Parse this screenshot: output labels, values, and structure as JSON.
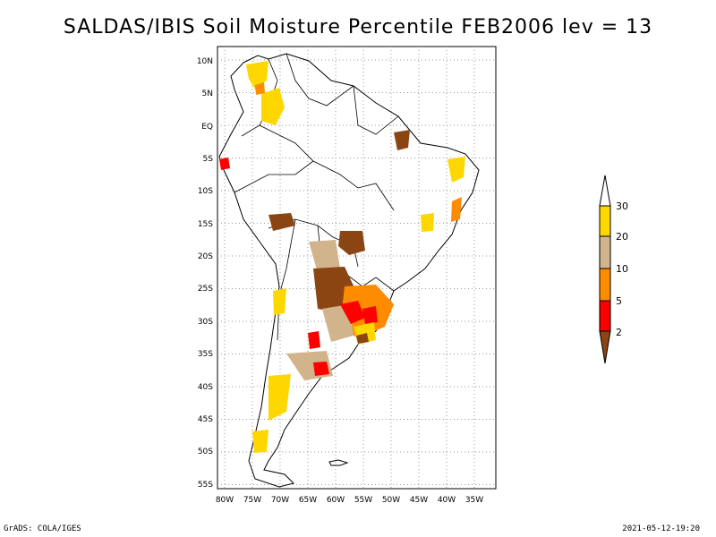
{
  "title": "SALDAS/IBIS Soil Moisture Percentile FEB2006 lev = 13",
  "map": {
    "lat_labels": [
      "10N",
      "5N",
      "EQ",
      "5S",
      "10S",
      "15S",
      "20S",
      "25S",
      "30S",
      "35S",
      "40S",
      "45S",
      "50S",
      "55S"
    ],
    "lon_labels": [
      "80W",
      "75W",
      "70W",
      "65W",
      "60W",
      "55W",
      "50W",
      "45W",
      "40W",
      "35W"
    ]
  },
  "colorbar": {
    "levels": [
      "2",
      "5",
      "10",
      "20",
      "30"
    ],
    "colors": [
      "#8b4513",
      "#ff0000",
      "#ff8c00",
      "#d2b48c",
      "#ffd700",
      "#ffffff"
    ]
  },
  "footer": {
    "left": "GrADS: COLA/IGES",
    "right": "2021-05-12-19:20"
  }
}
